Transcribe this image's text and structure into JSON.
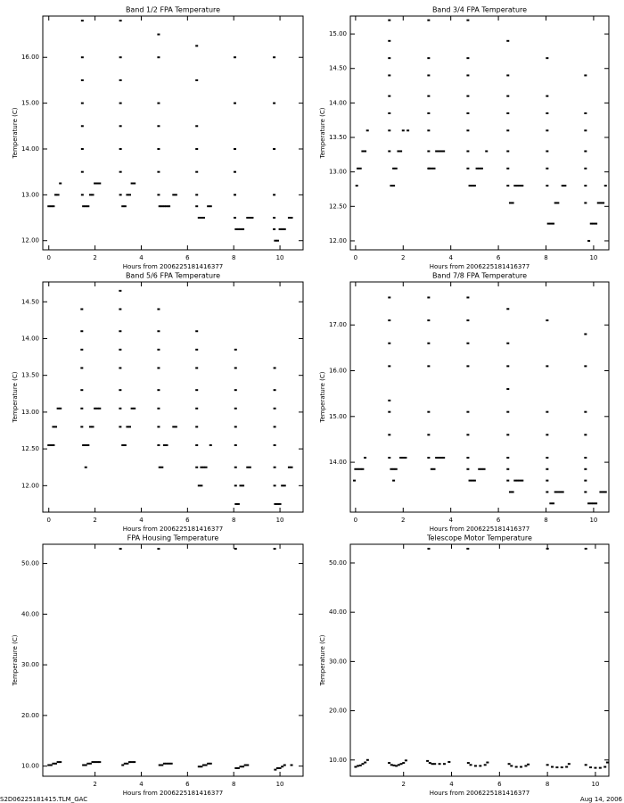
{
  "chart_data": [
    {
      "type": "scatter",
      "title": "Band 1/2 FPA Temperature",
      "x_label": "Hours from 2006225181416377",
      "y_label": "Temperature (C)",
      "color": "#000000",
      "xlim": [
        -0.26,
        11.0
      ],
      "xticks": [
        0,
        2,
        4,
        6,
        8,
        10
      ],
      "ylim": [
        11.8,
        16.9
      ],
      "yticks": [
        {
          "value": 12,
          "label": "12.00"
        },
        {
          "value": 13,
          "label": "13.00"
        },
        {
          "value": 14,
          "label": "14.00"
        },
        {
          "value": 15,
          "label": "15.00"
        },
        {
          "value": 16,
          "label": "16.00"
        }
      ],
      "x": [
        0,
        0.1,
        0.2,
        0.3,
        0.4,
        0.5,
        1.45,
        1.45,
        1.45,
        1.45,
        1.45,
        1.45,
        1.45,
        1.45,
        1.5,
        1.6,
        1.7,
        1.8,
        1.9,
        2.0,
        2.1,
        2.2,
        3.1,
        3.1,
        3.1,
        3.1,
        3.1,
        3.1,
        3.1,
        3.1,
        3.2,
        3.3,
        3.4,
        3.5,
        3.6,
        3.7,
        4.75,
        4.75,
        4.75,
        4.75,
        4.75,
        4.75,
        4.75,
        4.8,
        4.9,
        5.0,
        5.1,
        5.2,
        5.4,
        5.5,
        6.4,
        6.4,
        6.4,
        6.4,
        6.4,
        6.4,
        6.4,
        6.5,
        6.6,
        6.7,
        6.9,
        7.0,
        8.05,
        8.05,
        8.05,
        8.05,
        8.05,
        8.05,
        8.1,
        8.2,
        8.3,
        8.4,
        8.6,
        8.7,
        8.8,
        9.75,
        9.75,
        9.75,
        9.75,
        9.75,
        9.75,
        9.8,
        9.9,
        10.0,
        10.1,
        10.2,
        10.4,
        10.5
      ],
      "values": [
        12.75,
        12.75,
        12.75,
        13,
        13,
        13.25,
        13,
        13.5,
        14,
        14.5,
        15,
        15.5,
        16,
        16.8,
        12.75,
        12.75,
        12.75,
        13,
        13,
        13.25,
        13.25,
        13.25,
        13,
        13.5,
        14,
        14.5,
        15,
        15.5,
        16,
        16.8,
        12.75,
        12.75,
        13,
        13,
        13.25,
        13.25,
        13,
        13.5,
        14,
        14.5,
        15,
        16,
        16.5,
        12.75,
        12.75,
        12.75,
        12.75,
        12.75,
        13,
        13,
        12.75,
        13,
        13.5,
        14,
        14.5,
        15.5,
        16.25,
        12.5,
        12.5,
        12.5,
        12.75,
        12.75,
        12.5,
        13,
        13.5,
        14,
        15,
        16,
        12.25,
        12.25,
        12.25,
        12.25,
        12.5,
        12.5,
        12.5,
        12.25,
        12.5,
        13,
        14,
        15,
        16,
        12,
        12,
        12.25,
        12.25,
        12.25,
        12.5,
        12.5
      ]
    },
    {
      "type": "scatter",
      "title": "Band 3/4 FPA Temperature",
      "x_label": "Hours from 2006225181416377",
      "y_label": "Temperature (C)",
      "color": "#000000",
      "xlim": [
        -0.22,
        10.64
      ],
      "xticks": [
        0,
        2,
        4,
        6,
        8,
        10
      ],
      "ylim": [
        11.87,
        15.26
      ],
      "yticks": [
        {
          "value": 12,
          "label": "12.00"
        },
        {
          "value": 12.5,
          "label": "12.50"
        },
        {
          "value": 13,
          "label": "13.00"
        },
        {
          "value": 13.5,
          "label": "13.50"
        },
        {
          "value": 14,
          "label": "14.00"
        },
        {
          "value": 14.5,
          "label": "14.50"
        },
        {
          "value": 15,
          "label": "15.00"
        }
      ],
      "x": [
        0.05,
        0.1,
        0.2,
        0.3,
        0.4,
        0.5,
        1.42,
        1.42,
        1.42,
        1.42,
        1.42,
        1.42,
        1.42,
        1.42,
        1.5,
        1.6,
        1.6,
        1.7,
        1.8,
        1.9,
        2.0,
        2.2,
        3.07,
        3.07,
        3.07,
        3.07,
        3.07,
        3.07,
        3.07,
        3.07,
        3.1,
        3.2,
        3.3,
        3.4,
        3.5,
        3.6,
        3.7,
        4.72,
        4.72,
        4.72,
        4.72,
        4.72,
        4.72,
        4.72,
        4.72,
        4.8,
        4.9,
        5.0,
        5.1,
        5.2,
        5.3,
        5.5,
        6.4,
        6.4,
        6.4,
        6.4,
        6.4,
        6.4,
        6.4,
        6.4,
        6.5,
        6.6,
        6.7,
        6.8,
        6.9,
        7.0,
        8.05,
        8.05,
        8.05,
        8.05,
        8.05,
        8.05,
        8.05,
        8.1,
        8.2,
        8.3,
        8.4,
        8.5,
        8.7,
        8.8,
        9.66,
        9.66,
        9.66,
        9.66,
        9.66,
        9.66,
        9.66,
        9.8,
        9.9,
        10.0,
        10.1,
        10.2,
        10.3,
        10.4,
        10.5
      ],
      "values": [
        12.8,
        13.05,
        13.05,
        13.3,
        13.3,
        13.6,
        13.3,
        13.6,
        13.85,
        14.1,
        14.4,
        14.65,
        14.9,
        15.2,
        12.8,
        12.8,
        13.05,
        13.05,
        13.3,
        13.3,
        13.6,
        13.6,
        13.05,
        13.3,
        13.6,
        13.85,
        14.1,
        14.4,
        14.65,
        15.2,
        13.05,
        13.05,
        13.05,
        13.3,
        13.3,
        13.3,
        13.3,
        13.05,
        13.3,
        13.6,
        13.85,
        14.1,
        14.4,
        14.65,
        15.2,
        12.8,
        12.8,
        12.8,
        13.05,
        13.05,
        13.05,
        13.3,
        12.8,
        13.05,
        13.3,
        13.6,
        13.85,
        14.1,
        14.4,
        14.9,
        12.55,
        12.55,
        12.8,
        12.8,
        12.8,
        12.8,
        12.8,
        13.05,
        13.3,
        13.6,
        13.85,
        14.1,
        14.65,
        12.25,
        12.25,
        12.25,
        12.55,
        12.55,
        12.8,
        12.8,
        12.55,
        12.8,
        13.05,
        13.3,
        13.6,
        13.85,
        14.4,
        12.0,
        12.25,
        12.25,
        12.25,
        12.55,
        12.55,
        12.55,
        12.8
      ]
    },
    {
      "type": "scatter",
      "title": "Band 5/6 FPA Temperature",
      "x_label": "Hours from 2006225181416377",
      "y_label": "Temperature (C)",
      "color": "#000000",
      "xlim": [
        -0.26,
        11.0
      ],
      "xticks": [
        0,
        2,
        4,
        6,
        8,
        10
      ],
      "ylim": [
        11.64,
        14.77
      ],
      "yticks": [
        {
          "value": 12,
          "label": "12.00"
        },
        {
          "value": 12.5,
          "label": "12.50"
        },
        {
          "value": 13,
          "label": "13.00"
        },
        {
          "value": 13.5,
          "label": "13.50"
        },
        {
          "value": 14,
          "label": "14.00"
        },
        {
          "value": 14.5,
          "label": "14.50"
        }
      ],
      "x": [
        0,
        0.1,
        0.2,
        0.2,
        0.3,
        0.4,
        0.5,
        1.43,
        1.43,
        1.43,
        1.43,
        1.43,
        1.43,
        1.43,
        1.6,
        1.5,
        1.6,
        1.7,
        1.8,
        1.9,
        2.0,
        2.1,
        2.2,
        3.09,
        3.09,
        3.09,
        3.09,
        3.09,
        3.09,
        3.09,
        3.09,
        3.2,
        3.3,
        3.4,
        3.5,
        3.6,
        3.7,
        4.75,
        4.75,
        4.75,
        4.75,
        4.75,
        4.75,
        4.75,
        4.75,
        4.8,
        4.9,
        5.0,
        5.1,
        5.4,
        5.5,
        6.4,
        6.4,
        6.4,
        6.4,
        6.4,
        6.4,
        6.4,
        6.4,
        6.5,
        6.6,
        6.6,
        6.7,
        6.8,
        7.0,
        8.08,
        8.08,
        8.08,
        8.08,
        8.08,
        8.08,
        8.08,
        8.08,
        8.1,
        8.2,
        8.3,
        8.4,
        8.6,
        8.7,
        9.77,
        9.77,
        9.77,
        9.77,
        9.77,
        9.77,
        9.77,
        9.8,
        9.9,
        10.0,
        10.1,
        10.2,
        10.4,
        10.5
      ],
      "values": [
        12.55,
        12.55,
        12.55,
        12.8,
        12.8,
        13.05,
        13.05,
        12.8,
        13.05,
        13.3,
        13.6,
        13.85,
        14.1,
        14.4,
        12.25,
        12.55,
        12.55,
        12.55,
        12.8,
        12.8,
        13.05,
        13.05,
        13.05,
        12.8,
        13.05,
        13.3,
        13.6,
        13.85,
        14.1,
        14.4,
        14.65,
        12.55,
        12.55,
        12.8,
        12.8,
        13.05,
        13.05,
        12.55,
        12.8,
        13.05,
        13.3,
        13.6,
        13.85,
        14.1,
        14.4,
        12.25,
        12.25,
        12.55,
        12.55,
        12.8,
        12.8,
        12.25,
        12.55,
        12.8,
        13.05,
        13.3,
        13.6,
        13.85,
        14.1,
        12.0,
        12.0,
        12.25,
        12.25,
        12.25,
        12.55,
        12.0,
        12.25,
        12.55,
        12.8,
        13.05,
        13.3,
        13.6,
        13.85,
        11.75,
        11.75,
        12.0,
        12.0,
        12.25,
        12.25,
        12.0,
        12.25,
        12.55,
        12.8,
        13.05,
        13.3,
        13.6,
        11.75,
        11.75,
        11.75,
        12.0,
        12.0,
        12.25,
        12.25
      ]
    },
    {
      "type": "scatter",
      "title": "Band 7/8 FPA Temperature",
      "x_label": "Hours from 2006225181416377",
      "y_label": "Temperature (C)",
      "color": "#000000",
      "xlim": [
        -0.22,
        10.64
      ],
      "xticks": [
        0,
        2,
        4,
        6,
        8,
        10
      ],
      "ylim": [
        12.91,
        17.94
      ],
      "yticks": [
        {
          "value": 14,
          "label": "14.00"
        },
        {
          "value": 15,
          "label": "15.00"
        },
        {
          "value": 16,
          "label": "16.00"
        },
        {
          "value": 17,
          "label": "17.00"
        }
      ],
      "x": [
        -0.05,
        0,
        0.1,
        0.2,
        0.3,
        0.4,
        1.42,
        1.42,
        1.42,
        1.42,
        1.42,
        1.42,
        1.42,
        1.42,
        1.6,
        1.5,
        1.6,
        1.7,
        1.9,
        2.0,
        2.1,
        3.07,
        3.07,
        3.07,
        3.07,
        3.07,
        3.07,
        3.07,
        3.2,
        3.3,
        3.4,
        3.5,
        3.6,
        3.7,
        4.72,
        4.72,
        4.72,
        4.72,
        4.72,
        4.72,
        4.72,
        4.72,
        4.8,
        4.9,
        5.0,
        5.2,
        5.3,
        5.4,
        6.4,
        6.4,
        6.4,
        6.4,
        6.4,
        6.4,
        6.4,
        6.4,
        6.4,
        6.5,
        6.6,
        6.7,
        6.8,
        6.9,
        7.0,
        8.05,
        8.05,
        8.05,
        8.05,
        8.05,
        8.05,
        8.05,
        8.05,
        8.2,
        8.3,
        8.4,
        8.5,
        8.6,
        8.7,
        9.66,
        9.66,
        9.66,
        9.66,
        9.66,
        9.66,
        9.66,
        9.66,
        9.8,
        9.9,
        10.0,
        10.1,
        10.3,
        10.4,
        10.5
      ],
      "values": [
        13.6,
        13.85,
        13.85,
        13.85,
        13.85,
        14.1,
        14.1,
        14.6,
        15.1,
        15.35,
        16.1,
        16.6,
        17.1,
        17.6,
        13.6,
        13.85,
        13.85,
        13.85,
        14.1,
        14.1,
        14.1,
        14.1,
        14.6,
        15.1,
        16.1,
        16.6,
        17.1,
        17.6,
        13.85,
        13.85,
        14.1,
        14.1,
        14.1,
        14.1,
        13.85,
        14.1,
        14.6,
        15.1,
        16.1,
        16.6,
        17.1,
        17.6,
        13.6,
        13.6,
        13.6,
        13.85,
        13.85,
        13.85,
        13.6,
        13.85,
        14.1,
        14.6,
        15.1,
        15.6,
        16.1,
        16.6,
        17.35,
        13.35,
        13.35,
        13.6,
        13.6,
        13.6,
        13.6,
        13.35,
        13.6,
        13.85,
        14.1,
        14.6,
        15.1,
        16.1,
        17.1,
        13.1,
        13.1,
        13.35,
        13.35,
        13.35,
        13.35,
        13.35,
        13.6,
        13.85,
        14.1,
        14.6,
        15.1,
        16.1,
        16.8,
        13.1,
        13.1,
        13.1,
        13.1,
        13.35,
        13.35,
        13.35
      ]
    },
    {
      "type": "scatter",
      "title": "FPA Housing Temperature",
      "x_label": "Hours from 2006225181416377",
      "y_label": "Temperature (C)",
      "color": "#000000",
      "xlim": [
        -0.26,
        11.0
      ],
      "xticks": [
        2,
        4,
        6,
        8,
        10
      ],
      "ylim": [
        8.0,
        53.8
      ],
      "yticks": [
        {
          "value": 10,
          "label": "10.00"
        },
        {
          "value": 20,
          "label": "20.00"
        },
        {
          "value": 30,
          "label": "30.00"
        },
        {
          "value": 40,
          "label": "40.00"
        },
        {
          "value": 50,
          "label": "50.00"
        }
      ],
      "x": [
        0,
        0.1,
        0.2,
        0.3,
        0.4,
        0.5,
        1.5,
        1.6,
        1.7,
        1.8,
        1.9,
        2.0,
        2.1,
        2.2,
        3.2,
        3.3,
        3.4,
        3.5,
        3.6,
        3.7,
        4.8,
        4.9,
        5.0,
        5.1,
        5.2,
        5.3,
        6.5,
        6.6,
        6.7,
        6.8,
        6.9,
        7.0,
        8.1,
        8.2,
        8.3,
        8.4,
        8.5,
        8.6,
        9.8,
        9.9,
        10.0,
        10.1,
        10.2,
        10.5,
        3.1,
        4.75,
        8.08,
        9.77
      ],
      "values": [
        10.2,
        10.2,
        10.5,
        10.5,
        10.8,
        10.8,
        10.2,
        10.2,
        10.5,
        10.5,
        10.8,
        10.8,
        10.8,
        10.8,
        10.2,
        10.5,
        10.5,
        10.8,
        10.8,
        10.8,
        10.2,
        10.2,
        10.5,
        10.5,
        10.5,
        10.5,
        9.9,
        9.9,
        10.2,
        10.2,
        10.5,
        10.5,
        9.6,
        9.6,
        9.9,
        9.9,
        10.2,
        10.2,
        9.3,
        9.6,
        9.6,
        9.9,
        10.2,
        10.2,
        52.9,
        52.9,
        52.9,
        52.9
      ]
    },
    {
      "type": "scatter",
      "title": "Telescope Motor Temperature",
      "x_label": "Hours from 2006225181416377",
      "y_label": "Temperature (C)",
      "color": "#000000",
      "xlim": [
        -0.22,
        10.56
      ],
      "xticks": [
        2,
        4,
        6,
        8,
        10
      ],
      "ylim": [
        6.7,
        53.8
      ],
      "yticks": [
        {
          "value": 10,
          "label": "10.00"
        },
        {
          "value": 20,
          "label": "20.00"
        },
        {
          "value": 30,
          "label": "30.00"
        },
        {
          "value": 40,
          "label": "40.00"
        },
        {
          "value": 50,
          "label": "50.00"
        }
      ],
      "x": [
        0,
        0.1,
        0.2,
        0.3,
        0.4,
        0.5,
        1.4,
        1.5,
        1.6,
        1.7,
        1.8,
        1.9,
        2.0,
        2.1,
        3.0,
        3.1,
        3.2,
        3.3,
        3.5,
        3.7,
        3.9,
        4.7,
        4.8,
        5.0,
        5.2,
        5.4,
        5.5,
        6.4,
        6.5,
        6.7,
        6.9,
        7.1,
        7.2,
        8.0,
        8.2,
        8.4,
        8.6,
        8.8,
        8.9,
        9.6,
        9.8,
        10.0,
        10.2,
        10.4,
        10.5,
        3.05,
        4.68,
        8.0,
        9.6
      ],
      "values": [
        8.6,
        8.8,
        8.9,
        9.2,
        9.5,
        10.0,
        9.4,
        9.0,
        8.9,
        8.8,
        9.0,
        9.2,
        9.4,
        9.9,
        9.8,
        9.4,
        9.2,
        9.2,
        9.2,
        9.2,
        9.6,
        9.4,
        9.0,
        8.8,
        8.8,
        9.0,
        9.5,
        9.2,
        8.8,
        8.6,
        8.6,
        8.8,
        9.1,
        9.0,
        8.6,
        8.5,
        8.5,
        8.6,
        9.2,
        9.0,
        8.5,
        8.4,
        8.4,
        8.6,
        9.5,
        52.9,
        52.9,
        52.9,
        52.9
      ]
    }
  ],
  "footer": {
    "left": "S2D06225181415.TLM_GAC",
    "right": "Aug 14, 2006"
  }
}
